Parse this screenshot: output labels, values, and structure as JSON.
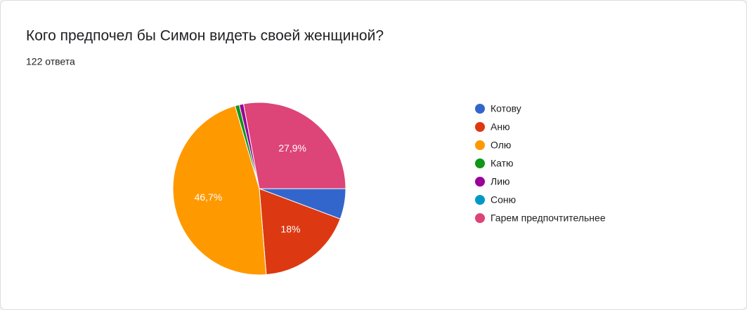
{
  "chart_data": {
    "type": "pie",
    "title": "Кого предпочел бы Симон видеть своей женщиной?",
    "subtitle": "122 ответа",
    "categories": [
      "Котову",
      "Аню",
      "Олю",
      "Катю",
      "Лию",
      "Соню",
      "Гарем предпочтительнее"
    ],
    "values": [
      5.7,
      18,
      46.7,
      0.8,
      0.8,
      0,
      27.9
    ],
    "value_labels": [
      null,
      "18%",
      "46,7%",
      null,
      null,
      null,
      "27,9%"
    ],
    "colors": [
      "#3366cc",
      "#dc3912",
      "#ff9900",
      "#109618",
      "#990099",
      "#0099c6",
      "#dd4477"
    ]
  }
}
